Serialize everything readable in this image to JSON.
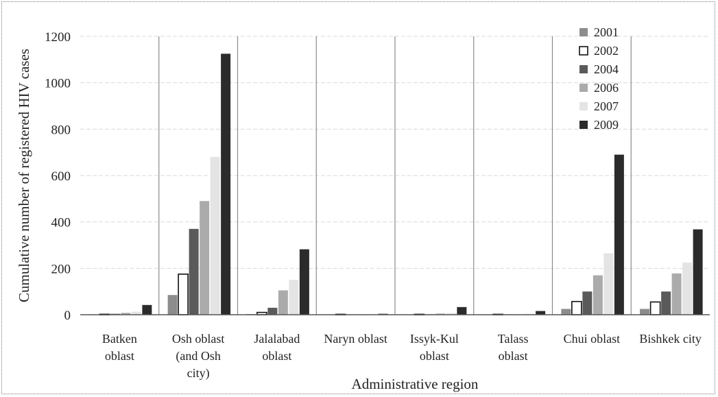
{
  "chart_data": {
    "type": "bar",
    "xlabel": "Administrative region",
    "ylabel": "Cumulative number of registered HIV cases",
    "ylim": [
      0,
      1200
    ],
    "yticks": [
      "0",
      "200",
      "400",
      "600",
      "800",
      "1000",
      "1200"
    ],
    "categories": [
      [
        "Batken",
        "oblast"
      ],
      [
        "Osh oblast",
        "(and Osh",
        "city)"
      ],
      [
        "Jalalabad",
        "oblast"
      ],
      [
        "Naryn oblast"
      ],
      [
        "Issyk-Kul",
        "oblast"
      ],
      [
        "Talass",
        "oblast"
      ],
      [
        "Chui oblast"
      ],
      [
        "Bishkek city"
      ]
    ],
    "series": [
      {
        "name": "2001",
        "color": "#8c8c8c",
        "values": [
          1,
          85,
          3,
          0,
          1,
          0,
          25,
          25
        ]
      },
      {
        "name": "2002",
        "color": "#ffffff",
        "values": [
          2,
          175,
          10,
          0,
          1,
          1,
          57,
          55
        ]
      },
      {
        "name": "2004",
        "color": "#5a5a5a",
        "values": [
          4,
          370,
          30,
          0,
          2,
          2,
          100,
          100
        ]
      },
      {
        "name": "2006",
        "color": "#ababab",
        "values": [
          8,
          490,
          105,
          1,
          5,
          2,
          170,
          178
        ]
      },
      {
        "name": "2007",
        "color": "#e4e4e4",
        "values": [
          13,
          680,
          150,
          2,
          7,
          4,
          265,
          225
        ]
      },
      {
        "name": "2009",
        "color": "#2b2b2b",
        "values": [
          42,
          1125,
          282,
          4,
          33,
          16,
          690,
          368
        ]
      }
    ],
    "grid": true,
    "legend": "top-right"
  }
}
